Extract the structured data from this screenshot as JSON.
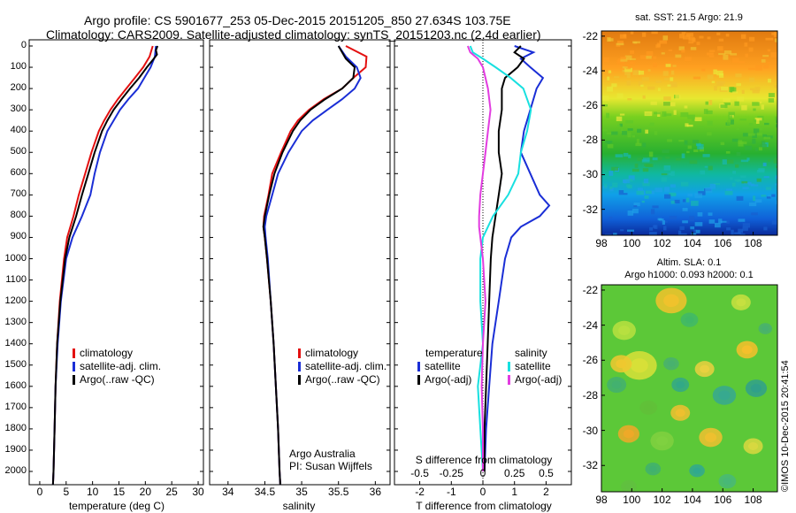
{
  "header": {
    "line1": "Argo profile: CS 5901677_253 05-Dec-2015 20151205_850 27.634S 103.75E",
    "line2": "Climatology: CARS2009. Satellite-adjusted climatology: synTS_20151203.nc (2.4d earlier)"
  },
  "colors": {
    "climatology": "#e31010",
    "satellite": "#1a2ed6",
    "argo": "#000000",
    "satellite_sal": "#18e0e0",
    "argo_sal": "#e23ce0"
  },
  "sst_map": {
    "title": "sat. SST: 21.5 Argo: 21.9",
    "xticks": [
      98,
      100,
      102,
      104,
      106,
      108
    ],
    "yticks": [
      -22,
      -24,
      -26,
      -28,
      -30,
      -32
    ]
  },
  "sla_map": {
    "title1": "Altim. SLA: 0.1",
    "title2": "Argo h1000: 0.093 h2000: 0.1",
    "xticks": [
      98,
      100,
      102,
      104,
      106,
      108
    ],
    "yticks": [
      -22,
      -24,
      -26,
      -28,
      -30,
      -32
    ]
  },
  "credit": "©IMOS 10-Dec-2015 20:41:54",
  "depth_ticks": [
    0,
    100,
    200,
    300,
    400,
    500,
    600,
    700,
    800,
    900,
    1000,
    1100,
    1200,
    1300,
    1400,
    1500,
    1600,
    1700,
    1800,
    1900,
    2000
  ],
  "temperature_panel": {
    "xlabel": "temperature (deg C)",
    "xticks": [
      "0",
      "5",
      "10",
      "15",
      "20",
      "25",
      "30"
    ],
    "legend": [
      "climatology",
      "satellite-adj. clim.",
      "Argo(..raw -QC)"
    ]
  },
  "salinity_panel": {
    "xlabel": "salinity",
    "xticks": [
      "34",
      "34.5",
      "35",
      "35.5",
      "36"
    ],
    "legend": [
      "climatology",
      "satellite-adj. clim.",
      "Argo(..raw -QC)"
    ],
    "note1": "Argo Australia",
    "note2": "PI: Susan Wijffels"
  },
  "difference_panel": {
    "xlabel": "T difference from climatology",
    "top_label": "S difference from climatology",
    "s_ticks": [
      "-0.5",
      "-0.25",
      "0",
      "0.25",
      "0.5"
    ],
    "t_ticks": [
      "-2",
      "-1",
      "0",
      "1",
      "2"
    ],
    "legend_temp_title": "temperature",
    "legend_sal_title": "salinity",
    "legend_temp": [
      "satellite",
      "Argo(-adj)"
    ],
    "legend_sal": [
      "satellite",
      "Argo(-adj)"
    ]
  },
  "chart_data": [
    {
      "type": "line",
      "title": "",
      "xlabel": "temperature (deg C)",
      "ylabel": "",
      "xlim": [
        -2,
        31
      ],
      "ylim": [
        2070,
        0
      ],
      "series": [
        {
          "name": "climatology",
          "depth": [
            0,
            50,
            100,
            150,
            200,
            250,
            300,
            350,
            400,
            500,
            600,
            700,
            800,
            900,
            1000,
            1200,
            1400,
            1600,
            1800,
            2000,
            2060
          ],
          "values": [
            21.4,
            20.8,
            19.6,
            18.0,
            16.4,
            14.8,
            13.4,
            12.2,
            11.2,
            9.8,
            8.6,
            7.4,
            6.4,
            5.2,
            4.6,
            3.8,
            3.3,
            3.0,
            2.8,
            2.6,
            2.5
          ]
        },
        {
          "name": "satellite-adj. clim.",
          "depth": [
            0,
            50,
            100,
            150,
            200,
            250,
            300,
            350,
            400,
            500,
            600,
            700,
            800,
            900,
            1000,
            1200,
            1400,
            1600,
            1800,
            2000,
            2060
          ],
          "values": [
            22.0,
            21.8,
            21.0,
            19.8,
            18.6,
            16.8,
            15.2,
            14.0,
            12.8,
            11.4,
            10.4,
            9.6,
            8.0,
            6.2,
            5.0,
            4.0,
            3.4,
            3.0,
            2.8,
            2.6,
            2.5
          ]
        },
        {
          "name": "Argo(..raw -QC)",
          "depth": [
            0,
            20,
            40,
            60,
            100,
            150,
            200,
            250,
            300,
            350,
            400,
            500,
            600,
            700,
            800,
            900,
            1000,
            1200,
            1400,
            1600,
            1800,
            2000,
            2060
          ],
          "values": [
            22.3,
            22.0,
            22.2,
            21.6,
            20.3,
            18.8,
            17.1,
            15.5,
            14.0,
            12.8,
            11.8,
            10.4,
            9.2,
            8.0,
            6.9,
            5.6,
            4.8,
            3.9,
            3.3,
            3.0,
            2.8,
            2.6,
            2.5
          ]
        }
      ]
    },
    {
      "type": "line",
      "title": "",
      "xlabel": "salinity",
      "ylabel": "",
      "xlim": [
        33.75,
        36.2
      ],
      "ylim": [
        2070,
        0
      ],
      "series": [
        {
          "name": "climatology",
          "depth": [
            0,
            50,
            100,
            150,
            200,
            250,
            300,
            350,
            400,
            500,
            600,
            700,
            800,
            850,
            900,
            1000,
            1200,
            1400,
            1600,
            1800,
            2000,
            2060
          ],
          "values": [
            35.6,
            35.88,
            35.87,
            35.7,
            35.55,
            35.3,
            35.1,
            34.95,
            34.85,
            34.72,
            34.6,
            34.55,
            34.49,
            34.48,
            34.5,
            34.53,
            34.58,
            34.62,
            34.65,
            34.68,
            34.7,
            34.71
          ]
        },
        {
          "name": "satellite-adj. clim.",
          "depth": [
            0,
            50,
            100,
            150,
            200,
            250,
            300,
            350,
            400,
            500,
            600,
            700,
            800,
            850,
            900,
            1000,
            1200,
            1400,
            1600,
            1800,
            2000,
            2060
          ],
          "values": [
            35.5,
            35.6,
            35.75,
            35.8,
            35.72,
            35.55,
            35.35,
            35.15,
            35.0,
            34.82,
            34.68,
            34.6,
            34.52,
            34.5,
            34.51,
            34.54,
            34.58,
            34.62,
            34.65,
            34.68,
            34.7,
            34.71
          ]
        },
        {
          "name": "Argo(..raw -QC)",
          "depth": [
            0,
            30,
            60,
            100,
            150,
            200,
            250,
            300,
            350,
            400,
            500,
            600,
            700,
            800,
            850,
            900,
            1000,
            1200,
            1400,
            1600,
            1800,
            2000,
            2060
          ],
          "values": [
            35.5,
            35.55,
            35.6,
            35.72,
            35.7,
            35.55,
            35.32,
            35.12,
            34.98,
            34.88,
            34.74,
            34.63,
            34.56,
            34.5,
            34.48,
            34.5,
            34.53,
            34.58,
            34.62,
            34.65,
            34.68,
            34.7,
            34.71
          ]
        }
      ]
    },
    {
      "type": "line",
      "title": "",
      "xlabel": "T difference from climatology",
      "ylabel": "",
      "xlim": [
        -2.8,
        2.8
      ],
      "ylim": [
        2070,
        0
      ],
      "series": [
        {
          "name": "satellite",
          "variable": "temperature",
          "depth": [
            0,
            30,
            60,
            100,
            150,
            200,
            300,
            400,
            500,
            600,
            700,
            750,
            800,
            850,
            900,
            1000,
            1100,
            1200,
            1400,
            1600,
            1800,
            2000
          ],
          "values": [
            1.0,
            1.6,
            1.2,
            1.5,
            1.9,
            1.7,
            1.5,
            1.3,
            1.2,
            1.5,
            1.8,
            2.1,
            1.8,
            1.2,
            0.9,
            0.7,
            0.6,
            0.5,
            0.3,
            0.2,
            0.1,
            0.05
          ]
        },
        {
          "name": "Argo(-adj)",
          "variable": "temperature",
          "depth": [
            0,
            30,
            60,
            100,
            150,
            200,
            300,
            400,
            500,
            600,
            700,
            800,
            900,
            1000,
            1200,
            1400,
            1600,
            1800,
            2000
          ],
          "values": [
            1.2,
            1.0,
            1.3,
            1.1,
            0.7,
            0.6,
            0.6,
            0.5,
            0.5,
            0.6,
            0.5,
            0.4,
            0.3,
            0.25,
            0.2,
            0.15,
            0.1,
            0.05,
            0.05
          ]
        },
        {
          "name": "satellite",
          "variable": "salinity",
          "depth": [
            0,
            30,
            60,
            100,
            150,
            200,
            300,
            400,
            500,
            600,
            700,
            800,
            900,
            1000,
            1200,
            1400,
            1600,
            1800,
            2000
          ],
          "values": [
            -0.1,
            -0.08,
            0.0,
            0.1,
            0.22,
            0.32,
            0.38,
            0.35,
            0.3,
            0.28,
            0.2,
            0.08,
            0.0,
            -0.02,
            -0.02,
            0.0,
            -0.04,
            -0.02,
            0.0
          ]
        },
        {
          "name": "Argo(-adj)",
          "variable": "salinity",
          "depth": [
            0,
            30,
            60,
            100,
            150,
            200,
            300,
            400,
            500,
            600,
            700,
            800,
            850,
            900,
            1000,
            1200,
            1400,
            1600,
            1800,
            2000
          ],
          "values": [
            -0.12,
            -0.1,
            -0.04,
            0.0,
            0.02,
            0.04,
            0.06,
            0.04,
            0.02,
            0.0,
            -0.02,
            -0.03,
            -0.03,
            -0.02,
            0.0,
            0.02,
            0.0,
            -0.01,
            0.0,
            0.0
          ]
        }
      ]
    },
    {
      "type": "heatmap",
      "title": "sat. SST: 21.5 Argo: 21.9",
      "xlabel": "",
      "ylabel": "",
      "xlim": [
        98,
        109.6
      ],
      "ylim": [
        -33.5,
        -21.7
      ],
      "description_values": "SST gradient warm (orange) in north to cool (blue) in south"
    },
    {
      "type": "heatmap",
      "title": "Altim. SLA: 0.1 / Argo h1000: 0.093 h2000: 0.1",
      "xlabel": "",
      "ylabel": "",
      "xlim": [
        98,
        109.6
      ],
      "ylim": [
        -33.5,
        -21.7
      ]
    }
  ]
}
